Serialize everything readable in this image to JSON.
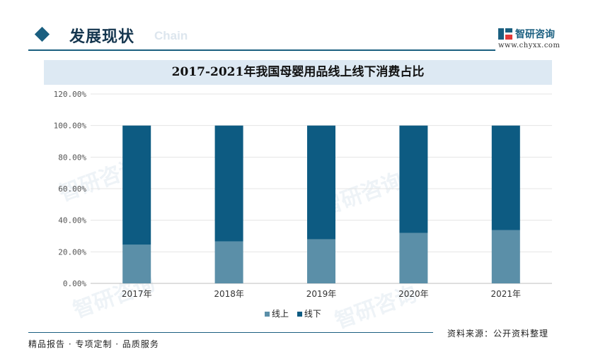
{
  "header": {
    "title": "发展现状",
    "subtitle": "Chain",
    "brand_name": "智研咨询",
    "brand_url": "www.chyxx.com"
  },
  "watermark_text": "智研咨询",
  "chart_data": {
    "type": "bar",
    "stacked": true,
    "title": "2017-2021年我国母婴用品线上线下消费占比",
    "categories": [
      "2017年",
      "2018年",
      "2019年",
      "2020年",
      "2021年"
    ],
    "series": [
      {
        "name": "线上",
        "values": [
          24.5,
          26.6,
          28.0,
          32.0,
          33.8
        ],
        "color": "#5b8fa8"
      },
      {
        "name": "线下",
        "values": [
          75.5,
          73.4,
          72.0,
          68.0,
          66.2
        ],
        "color": "#0d5b82"
      }
    ],
    "ylim": [
      0,
      120
    ],
    "yticks": [
      "0.00%",
      "20.00%",
      "40.00%",
      "60.00%",
      "80.00%",
      "100.00%",
      "120.00%"
    ],
    "grid": true,
    "legend_position": "bottom"
  },
  "footer": {
    "left": "精品报告 · 专项定制 · 品质服务",
    "right": "资料来源：公开资料整理"
  }
}
